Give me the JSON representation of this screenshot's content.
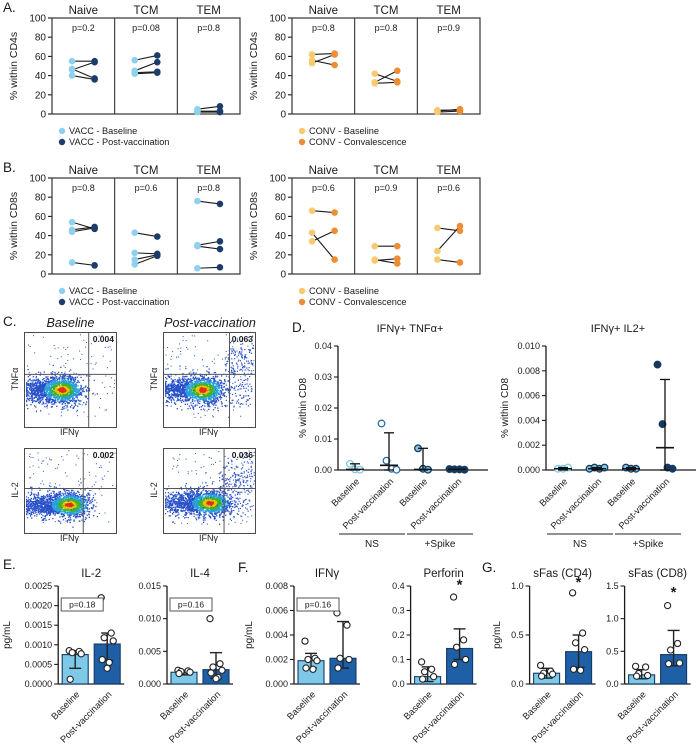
{
  "panels": {
    "a": "A.",
    "b": "B.",
    "c": "C.",
    "d": "D.",
    "e": "E.",
    "f": "F.",
    "g": "G."
  },
  "colors": {
    "vacc_baseline": "#8ED1EE",
    "vacc_post": "#1C3D6B",
    "conv_baseline": "#F7CA70",
    "conv_post": "#EE8D33",
    "bar_baseline": "#7EC9E8",
    "bar_post": "#1F5FA6",
    "flow_density": [
      "#2850C8",
      "#28A0DC",
      "#3CB428",
      "#F0C000",
      "#E03010"
    ]
  },
  "chart_data": {
    "paired": [
      {
        "id": "A_left",
        "type": "line",
        "ylabel": "% within CD4s",
        "ymax": 100,
        "yticks": [
          0,
          20,
          40,
          60,
          80,
          100
        ],
        "colors": {
          "pre": "#8ED1EE",
          "post": "#1C3D6B"
        },
        "legend": [
          {
            "label": "VACC - Baseline",
            "color": "#8ED1EE"
          },
          {
            "label": "VACC - Post-vaccination",
            "color": "#1C3D6B"
          }
        ],
        "columns": [
          {
            "name": "Naive",
            "p": "p=0.2",
            "pairs": [
              [
                55,
                55
              ],
              [
                46,
                54
              ],
              [
                47,
                37
              ],
              [
                40,
                36
              ]
            ]
          },
          {
            "name": "TCM",
            "p": "p=0.08",
            "pairs": [
              [
                56,
                61
              ],
              [
                45,
                54
              ],
              [
                43,
                44
              ],
              [
                42,
                43
              ]
            ]
          },
          {
            "name": "TEM",
            "p": "p=0.8",
            "pairs": [
              [
                5,
                8
              ],
              [
                3,
                3
              ],
              [
                2,
                2
              ]
            ]
          }
        ]
      },
      {
        "id": "A_right",
        "type": "line",
        "ylabel": "% within CD4s",
        "ymax": 100,
        "yticks": [
          0,
          20,
          40,
          60,
          80,
          100
        ],
        "colors": {
          "pre": "#F7CA70",
          "post": "#EE8D33"
        },
        "legend": [
          {
            "label": "CONV - Baseline",
            "color": "#F7CA70"
          },
          {
            "label": "CONV - Convalescence",
            "color": "#EE8D33"
          }
        ],
        "columns": [
          {
            "name": "Naive",
            "p": "p=0.8",
            "pairs": [
              [
                62,
                63
              ],
              [
                56,
                51
              ],
              [
                53,
                62
              ]
            ]
          },
          {
            "name": "TCM",
            "p": "p=0.8",
            "pairs": [
              [
                42,
                34
              ],
              [
                33,
                45
              ],
              [
                32,
                33
              ]
            ]
          },
          {
            "name": "TEM",
            "p": "p=0.9",
            "pairs": [
              [
                4,
                4
              ],
              [
                3,
                5
              ],
              [
                2,
                3
              ]
            ]
          }
        ]
      },
      {
        "id": "B_left",
        "type": "line",
        "ylabel": "% within CD8s",
        "ymax": 100,
        "yticks": [
          0,
          20,
          40,
          60,
          80,
          100
        ],
        "colors": {
          "pre": "#8ED1EE",
          "post": "#1C3D6B"
        },
        "legend": [
          {
            "label": "VACC - Baseline",
            "color": "#8ED1EE"
          },
          {
            "label": "VACC - Post-vaccination",
            "color": "#1C3D6B"
          }
        ],
        "columns": [
          {
            "name": "Naive",
            "p": "p=0.8",
            "pairs": [
              [
                54,
                47
              ],
              [
                46,
                49
              ],
              [
                44,
                48
              ],
              [
                12,
                9
              ]
            ]
          },
          {
            "name": "TCM",
            "p": "p=0.6",
            "pairs": [
              [
                43,
                39
              ],
              [
                22,
                21
              ],
              [
                15,
                20
              ],
              [
                10,
                19
              ]
            ]
          },
          {
            "name": "TEM",
            "p": "p=0.8",
            "pairs": [
              [
                76,
                73
              ],
              [
                30,
                34
              ],
              [
                29,
                26
              ],
              [
                6,
                7
              ]
            ]
          }
        ]
      },
      {
        "id": "B_right",
        "type": "line",
        "ylabel": "% within CD8s",
        "ymax": 100,
        "yticks": [
          0,
          20,
          40,
          60,
          80,
          100
        ],
        "colors": {
          "pre": "#F7CA70",
          "post": "#EE8D33"
        },
        "legend": [
          {
            "label": "CONV - Baseline",
            "color": "#F7CA70"
          },
          {
            "label": "CONV - Convalescence",
            "color": "#EE8D33"
          }
        ],
        "columns": [
          {
            "name": "Naive",
            "p": "p=0.6",
            "pairs": [
              [
                66,
                64
              ],
              [
                43,
                15
              ],
              [
                34,
                45
              ]
            ]
          },
          {
            "name": "TCM",
            "p": "p=0.9",
            "pairs": [
              [
                29,
                29
              ],
              [
                15,
                11
              ],
              [
                14,
                16
              ]
            ]
          },
          {
            "name": "TEM",
            "p": "p=0.6",
            "pairs": [
              [
                48,
                45
              ],
              [
                24,
                50
              ],
              [
                15,
                12
              ]
            ]
          }
        ]
      }
    ],
    "flow": {
      "col_titles": [
        "Baseline",
        "Post-vaccination"
      ],
      "plots": [
        {
          "id": "C1",
          "ylabel": "TNFα",
          "xlabel": "IFNγ",
          "value": "0.004"
        },
        {
          "id": "C2",
          "ylabel": "TNFα",
          "xlabel": "IFNγ",
          "value": "0.063"
        },
        {
          "id": "C3",
          "ylabel": "IL-2",
          "xlabel": "IFNγ",
          "value": "0.002"
        },
        {
          "id": "C4",
          "ylabel": "IL-2",
          "xlabel": "IFNγ",
          "value": "0.036"
        }
      ]
    },
    "scatter": [
      {
        "id": "D_left",
        "type": "scatter",
        "title": "IFNγ+ TNFα+",
        "ylabel": "% within CD8",
        "ymax": 0.04,
        "yticks": [
          "0.00",
          "0.01",
          "0.02",
          "0.03",
          "0.04"
        ],
        "groups": [
          {
            "label": "Baseline",
            "style": "open-light",
            "points": [
              0.002,
              0.0002,
              0.0001
            ],
            "median": 0.0002,
            "hi": 0.002,
            "lo": 0
          },
          {
            "label": "Post-vaccination",
            "style": "open-mid",
            "points": [
              0.015,
              0.003,
              0.0004,
              0.0001
            ],
            "median": 0.0015,
            "hi": 0.012,
            "lo": 0
          },
          {
            "label": "Baseline",
            "style": "fill-light",
            "points": [
              0.007,
              0.0004,
              0.0001
            ],
            "median": 0.0002,
            "hi": 0.007,
            "lo": 0
          },
          {
            "label": "Post-vaccination",
            "style": "fill-dark",
            "points": [
              0.0003,
              0.0002,
              0.0002,
              0.0001
            ],
            "median": 0.0002,
            "hi": 0.0004,
            "lo": 0
          }
        ],
        "brackets": [
          {
            "label": "NS",
            "from": 0,
            "to": 1
          },
          {
            "label": "+Spike",
            "from": 2,
            "to": 3
          }
        ]
      },
      {
        "id": "D_right",
        "type": "scatter",
        "title": "IFNγ+ IL2+",
        "ylabel": "% within CD8",
        "ymax": 0.01,
        "yticks": [
          "0.000",
          "0.002",
          "0.004",
          "0.006",
          "0.008",
          "0.010"
        ],
        "groups": [
          {
            "label": "Baseline",
            "style": "open-light",
            "points": [
              0.0001,
              0.0001,
              0.0002
            ],
            "median": 0.0001,
            "hi": 0.0002,
            "lo": 0
          },
          {
            "label": "Post-vaccination",
            "style": "fill-light",
            "points": [
              0.0001,
              0.0002,
              0.0001,
              0.0002
            ],
            "median": 0.0001,
            "hi": 0.0002,
            "lo": 0
          },
          {
            "label": "Baseline",
            "style": "fill-light",
            "points": [
              0.0002,
              0.0001,
              0.0001
            ],
            "median": 0.0001,
            "hi": 0.0002,
            "lo": 0
          },
          {
            "label": "Post-vaccination",
            "style": "fill-dark",
            "points": [
              0.0085,
              0.0037,
              0.0002,
              0.0001
            ],
            "median": 0.0018,
            "hi": 0.0073,
            "lo": 0
          }
        ],
        "brackets": [
          {
            "label": "NS",
            "from": 0,
            "to": 1
          },
          {
            "label": "+Spike",
            "from": 2,
            "to": 3
          }
        ]
      }
    ],
    "bars": [
      {
        "id": "E1",
        "type": "bar",
        "title": "IL-2",
        "ylabel": "pg/mL",
        "ymax": 0.0025,
        "yticks": [
          "0.0000",
          "0.0005",
          "0.0010",
          "0.0015",
          "0.0020",
          "0.0025"
        ],
        "pbox": "p=0.18",
        "bars": [
          {
            "label": "Baseline",
            "color": "#7EC9E8",
            "value": 0.00075,
            "lo": 0.0004,
            "hi": 0.00085,
            "points": [
              0.00085,
              0.00083,
              0.0008,
              0.00077,
              0.00012
            ]
          },
          {
            "label": "Post-vaccination",
            "color": "#1F5FA6",
            "value": 0.00102,
            "lo": 0.0006,
            "hi": 0.0013,
            "points": [
              0.0022,
              0.0013,
              0.00118,
              0.0011,
              0.00062,
              0.00055,
              0.0004
            ]
          }
        ]
      },
      {
        "id": "E2",
        "type": "bar",
        "title": "IL-4",
        "ylabel": "",
        "ymax": 0.015,
        "yticks": [
          "0.000",
          "0.005",
          "0.010",
          "0.015"
        ],
        "pbox": "p=0.16",
        "bars": [
          {
            "label": "Baseline",
            "color": "#7EC9E8",
            "value": 0.0018,
            "lo": 0.0014,
            "hi": 0.0021,
            "points": [
              0.0021,
              0.002,
              0.0019,
              0.0018,
              0.0016
            ]
          },
          {
            "label": "Post-vaccination",
            "color": "#1F5FA6",
            "value": 0.0022,
            "lo": 0.0009,
            "hi": 0.0048,
            "points": [
              0.01,
              0.0031,
              0.0026,
              0.0021,
              0.0017,
              0.001,
              0.0008
            ]
          }
        ]
      },
      {
        "id": "F1",
        "type": "bar",
        "title": "IFNγ",
        "ylabel": "pg/mL",
        "ymax": 0.008,
        "yticks": [
          "0.000",
          "0.002",
          "0.004",
          "0.006",
          "0.008"
        ],
        "pbox": "p=0.16",
        "bars": [
          {
            "label": "Baseline",
            "color": "#7EC9E8",
            "value": 0.0019,
            "lo": 0.0013,
            "hi": 0.0025,
            "points": [
              0.0035,
              0.0021,
              0.002,
              0.0019,
              0.0013,
              0.0012
            ]
          },
          {
            "label": "Post-vaccination",
            "color": "#1F5FA6",
            "value": 0.0021,
            "lo": 0.0013,
            "hi": 0.0051,
            "points": [
              0.0058,
              0.0048,
              0.0021,
              0.002,
              0.0013
            ]
          }
        ]
      },
      {
        "id": "F2",
        "type": "bar",
        "title": "Perforin",
        "ylabel": "",
        "ymax": 0.4,
        "yticks": [
          "0.0",
          "0.1",
          "0.2",
          "0.3",
          "0.4"
        ],
        "star": "*",
        "star_y": 0.385,
        "bars": [
          {
            "label": "Baseline",
            "color": "#7EC9E8",
            "value": 0.03,
            "lo": 0.01,
            "hi": 0.07,
            "points": [
              0.09,
              0.06,
              0.05,
              0.03,
              0.02
            ]
          },
          {
            "label": "Post-vaccination",
            "color": "#1F5FA6",
            "value": 0.145,
            "lo": 0.1,
            "hi": 0.225,
            "points": [
              0.355,
              0.18,
              0.15,
              0.1,
              0.08
            ]
          }
        ]
      },
      {
        "id": "G1",
        "type": "bar",
        "title": "sFas (CD4)",
        "ylabel": "pg/mL",
        "ymax": 1.0,
        "yticks": [
          "0.0",
          "0.5",
          "1.0"
        ],
        "star": "*",
        "star_y": 0.99,
        "bars": [
          {
            "label": "Baseline",
            "color": "#7EC9E8",
            "value": 0.11,
            "lo": 0.06,
            "hi": 0.16,
            "points": [
              0.19,
              0.13,
              0.11,
              0.1,
              0.08
            ]
          },
          {
            "label": "Post-vaccination",
            "color": "#1F5FA6",
            "value": 0.33,
            "lo": 0.17,
            "hi": 0.5,
            "points": [
              0.93,
              0.52,
              0.42,
              0.35,
              0.15,
              0.14
            ]
          }
        ]
      },
      {
        "id": "G2",
        "type": "bar",
        "title": "sFas (CD8)",
        "ylabel": "",
        "ymax": 1.5,
        "yticks": [
          "0.0",
          "0.5",
          "1.0",
          "1.5"
        ],
        "star": "*",
        "star_y": 1.33,
        "bars": [
          {
            "label": "Baseline",
            "color": "#7EC9E8",
            "value": 0.14,
            "lo": 0.08,
            "hi": 0.22,
            "points": [
              0.27,
              0.26,
              0.16,
              0.13,
              0.12
            ]
          },
          {
            "label": "Post-vaccination",
            "color": "#1F5FA6",
            "value": 0.45,
            "lo": 0.28,
            "hi": 0.82,
            "points": [
              1.2,
              0.62,
              0.52,
              0.32,
              0.31
            ]
          }
        ]
      }
    ]
  }
}
